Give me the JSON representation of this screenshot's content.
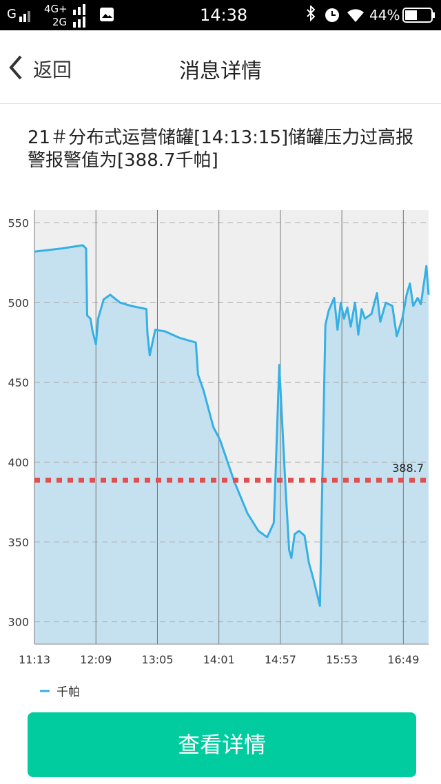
{
  "status_bar": {
    "carrier1": "G",
    "carrier2": "4G+",
    "carrier3": "2G",
    "time": "14:38",
    "battery": "44%"
  },
  "header": {
    "back": "返回",
    "title": "消息详情"
  },
  "message": "21＃分布式运营储罐[14:13:15]储罐压力过高报警报警值为[388.7千帕]",
  "chart_data": {
    "type": "line",
    "x": [
      673,
      698,
      717,
      720,
      721,
      724,
      726,
      729,
      731,
      736,
      742,
      751,
      761,
      775,
      776,
      778,
      783,
      792,
      805,
      820,
      822,
      827,
      836,
      842,
      855,
      867,
      877,
      885,
      891,
      892,
      896,
      899,
      902,
      905,
      907,
      910,
      914,
      919,
      923,
      927,
      933,
      935,
      938,
      941,
      946,
      949,
      952,
      955,
      958,
      961,
      965,
      968,
      971,
      974,
      980,
      985,
      988,
      993,
      999,
      1003,
      1008,
      1012,
      1015,
      1018,
      1022,
      1025,
      1030,
      1032
    ],
    "series": [
      {
        "name": "千帕",
        "color": "#35b0e5",
        "values": [
          532,
          534,
          536,
          534,
          492,
          490,
          482,
          474,
          490,
          502,
          505,
          500,
          498,
          496,
          480,
          467,
          483,
          482,
          478,
          475,
          455,
          445,
          422,
          414,
          388,
          368,
          357,
          353,
          362,
          380,
          461,
          420,
          380,
          345,
          340,
          355,
          357,
          354,
          337,
          327,
          310,
          380,
          486,
          495,
          503,
          483,
          500,
          490,
          497,
          485,
          500,
          480,
          496,
          490,
          493,
          506,
          488,
          500,
          498,
          479,
          490,
          505,
          512,
          498,
          503,
          499,
          523,
          505
        ]
      }
    ],
    "threshold": 388.7,
    "xlim": [
      673,
      1032
    ],
    "xticks": [
      {
        "value": 673,
        "label": "11:13"
      },
      {
        "value": 729,
        "label": "12:09"
      },
      {
        "value": 785,
        "label": "13:05"
      },
      {
        "value": 841,
        "label": "14:01"
      },
      {
        "value": 897,
        "label": "14:57"
      },
      {
        "value": 953,
        "label": "15:53"
      },
      {
        "value": 1009,
        "label": "16:49"
      }
    ],
    "ylim": [
      286,
      558
    ],
    "yticks": [
      300,
      350,
      400,
      450,
      500,
      550
    ],
    "grid": true
  },
  "button": "查看详情"
}
